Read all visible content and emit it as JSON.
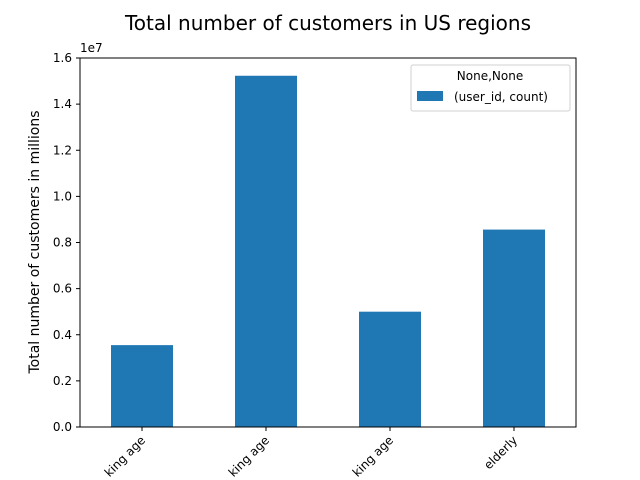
{
  "chart_data": {
    "type": "bar",
    "title": "Total number of customers in US regions",
    "xlabel": "",
    "ylabel": "Total number of customers in millions",
    "offset_text": "1e7",
    "categories": [
      "working age",
      "working age",
      "working age",
      "elderly"
    ],
    "category_labels_visible": [
      "king age",
      "king age",
      "king age",
      "elderly"
    ],
    "series": [
      {
        "name": "(user_id, count)",
        "values": [
          3550000,
          15230000,
          5000000,
          8560000
        ],
        "color": "#1f77b4"
      }
    ],
    "ylim": [
      0,
      16000000
    ],
    "yticks": [
      0,
      2000000,
      4000000,
      6000000,
      8000000,
      10000000,
      12000000,
      14000000,
      16000000
    ],
    "ytick_labels": [
      "0.0",
      "0.2",
      "0.4",
      "0.6",
      "0.8",
      "1.0",
      "1.2",
      "1.4",
      "1.6"
    ],
    "grid": false,
    "legend": {
      "title": "None,None",
      "placement": "top-right"
    }
  }
}
